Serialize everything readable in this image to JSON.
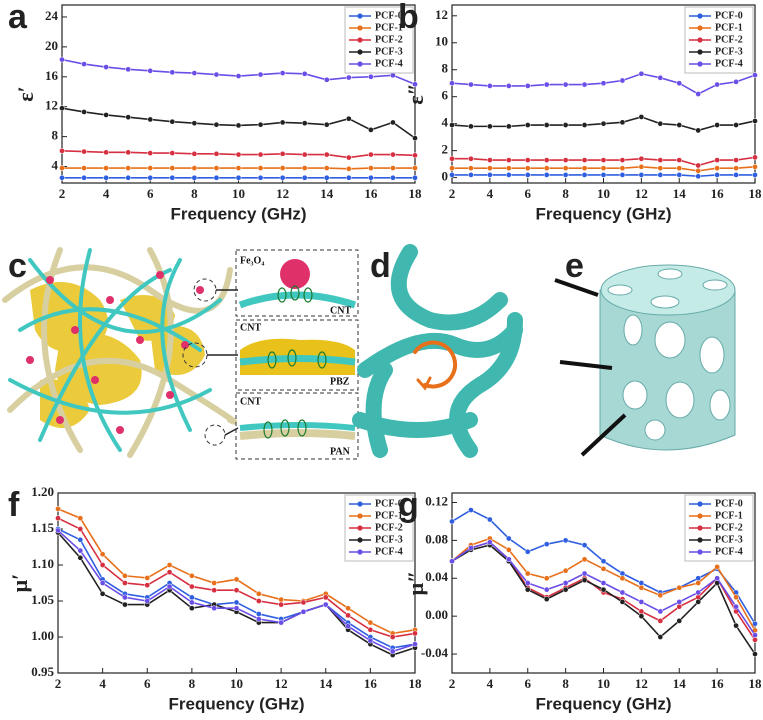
{
  "chart_data": [
    {
      "type": "line",
      "panel_label": "a",
      "ylabel": "ε′",
      "xlabel": "Frequency (GHz)",
      "x": [
        2,
        3,
        4,
        5,
        6,
        7,
        8,
        9,
        10,
        11,
        12,
        13,
        14,
        15,
        16,
        17,
        18
      ],
      "xlim": [
        2,
        18
      ],
      "xticks": [
        2,
        4,
        6,
        8,
        10,
        12,
        14,
        16,
        18
      ],
      "ylim": [
        1.8,
        25.6
      ],
      "yticks": [
        4,
        8,
        12,
        16,
        20,
        24
      ],
      "legend": "upper right",
      "series": [
        {
          "name": "PCF-0",
          "color": "#2f5fe0",
          "values": [
            2.5,
            2.5,
            2.5,
            2.5,
            2.5,
            2.5,
            2.5,
            2.5,
            2.5,
            2.5,
            2.5,
            2.5,
            2.5,
            2.5,
            2.5,
            2.5,
            2.5
          ]
        },
        {
          "name": "PCF-1",
          "color": "#e8701a",
          "values": [
            3.8,
            3.8,
            3.8,
            3.8,
            3.8,
            3.8,
            3.8,
            3.8,
            3.8,
            3.8,
            3.8,
            3.8,
            3.8,
            3.7,
            3.8,
            3.8,
            3.8
          ]
        },
        {
          "name": "PCF-2",
          "color": "#d62f40",
          "values": [
            6.1,
            6.0,
            5.9,
            5.9,
            5.8,
            5.8,
            5.7,
            5.7,
            5.6,
            5.6,
            5.7,
            5.6,
            5.6,
            5.2,
            5.6,
            5.6,
            5.5
          ]
        },
        {
          "name": "PCF-3",
          "color": "#222222",
          "values": [
            11.8,
            11.3,
            10.9,
            10.6,
            10.3,
            10.0,
            9.8,
            9.6,
            9.5,
            9.6,
            9.9,
            9.8,
            9.6,
            10.4,
            8.9,
            9.9,
            7.8
          ]
        },
        {
          "name": "PCF-4",
          "color": "#6b4de8",
          "values": [
            18.3,
            17.7,
            17.3,
            17.0,
            16.8,
            16.6,
            16.5,
            16.3,
            16.1,
            16.3,
            16.5,
            16.4,
            15.6,
            15.9,
            16.0,
            16.2,
            15.0
          ]
        }
      ]
    },
    {
      "type": "line",
      "panel_label": "b",
      "ylabel": "ε″",
      "xlabel": "Frequency (GHz)",
      "x": [
        2,
        3,
        4,
        5,
        6,
        7,
        8,
        9,
        10,
        11,
        12,
        13,
        14,
        15,
        16,
        17,
        18
      ],
      "xlim": [
        2,
        18
      ],
      "xticks": [
        2,
        4,
        6,
        8,
        10,
        12,
        14,
        16,
        18
      ],
      "ylim": [
        -0.4,
        12.8
      ],
      "yticks": [
        0,
        2,
        4,
        6,
        8,
        10,
        12
      ],
      "legend": "upper right",
      "series": [
        {
          "name": "PCF-0",
          "color": "#2f5fe0",
          "values": [
            0.2,
            0.2,
            0.2,
            0.2,
            0.2,
            0.2,
            0.2,
            0.2,
            0.2,
            0.2,
            0.2,
            0.2,
            0.2,
            0.1,
            0.2,
            0.2,
            0.2
          ]
        },
        {
          "name": "PCF-1",
          "color": "#e8701a",
          "values": [
            0.7,
            0.7,
            0.7,
            0.7,
            0.7,
            0.7,
            0.7,
            0.7,
            0.7,
            0.7,
            0.8,
            0.7,
            0.7,
            0.5,
            0.7,
            0.7,
            0.8
          ]
        },
        {
          "name": "PCF-2",
          "color": "#d62f40",
          "values": [
            1.4,
            1.4,
            1.3,
            1.3,
            1.3,
            1.3,
            1.3,
            1.3,
            1.3,
            1.3,
            1.4,
            1.3,
            1.3,
            0.9,
            1.3,
            1.3,
            1.5
          ]
        },
        {
          "name": "PCF-3",
          "color": "#222222",
          "values": [
            3.9,
            3.8,
            3.8,
            3.8,
            3.9,
            3.9,
            3.9,
            3.9,
            4.0,
            4.1,
            4.5,
            4.0,
            3.9,
            3.5,
            3.9,
            3.9,
            4.2
          ]
        },
        {
          "name": "PCF-4",
          "color": "#6b4de8",
          "values": [
            7.0,
            6.9,
            6.8,
            6.8,
            6.8,
            6.9,
            6.9,
            6.9,
            7.0,
            7.2,
            7.7,
            7.4,
            7.0,
            6.2,
            6.9,
            7.1,
            7.6
          ]
        }
      ]
    },
    {
      "type": "line",
      "panel_label": "f",
      "ylabel": "μ′",
      "xlabel": "Frequency (GHz)",
      "x": [
        2,
        3,
        4,
        5,
        6,
        7,
        8,
        9,
        10,
        11,
        12,
        13,
        14,
        15,
        16,
        17,
        18
      ],
      "xlim": [
        2,
        18
      ],
      "xticks": [
        2,
        4,
        6,
        8,
        10,
        12,
        14,
        16,
        18
      ],
      "ylim": [
        0.95,
        1.2
      ],
      "yticks": [
        0.95,
        {
          "value": 1,
          "label": "1.00"
        },
        1.05,
        {
          "value": 1.1,
          "label": "1.10"
        },
        1.15,
        {
          "value": 1.2,
          "label": "1.20"
        }
      ],
      "legend": "upper right",
      "series": [
        {
          "name": "PCF-0",
          "color": "#2f5fe0",
          "values": [
            1.15,
            1.135,
            1.08,
            1.06,
            1.055,
            1.075,
            1.055,
            1.045,
            1.048,
            1.032,
            1.025,
            1.035,
            1.045,
            1.02,
            1.0,
            0.985,
            0.99
          ]
        },
        {
          "name": "PCF-1",
          "color": "#e8701a",
          "values": [
            1.178,
            1.165,
            1.115,
            1.085,
            1.082,
            1.1,
            1.085,
            1.075,
            1.08,
            1.06,
            1.052,
            1.05,
            1.06,
            1.04,
            1.02,
            1.005,
            1.01
          ]
        },
        {
          "name": "PCF-2",
          "color": "#d62f40",
          "values": [
            1.165,
            1.15,
            1.1,
            1.075,
            1.072,
            1.09,
            1.07,
            1.065,
            1.065,
            1.05,
            1.045,
            1.048,
            1.055,
            1.03,
            1.01,
            1.0,
            1.005
          ]
        },
        {
          "name": "PCF-3",
          "color": "#222222",
          "values": [
            1.145,
            1.11,
            1.06,
            1.045,
            1.045,
            1.065,
            1.04,
            1.045,
            1.035,
            1.02,
            1.02,
            1.035,
            1.045,
            1.01,
            0.99,
            0.975,
            0.985
          ]
        },
        {
          "name": "PCF-4",
          "color": "#6b4de8",
          "values": [
            1.148,
            1.12,
            1.075,
            1.055,
            1.05,
            1.07,
            1.048,
            1.04,
            1.04,
            1.025,
            1.02,
            1.035,
            1.045,
            1.015,
            0.995,
            0.98,
            0.99
          ]
        }
      ]
    },
    {
      "type": "line",
      "panel_label": "g",
      "ylabel": "μ″",
      "xlabel": "Frequency (GHz)",
      "x": [
        2,
        3,
        4,
        5,
        6,
        7,
        8,
        9,
        10,
        11,
        12,
        13,
        14,
        15,
        16,
        17,
        18
      ],
      "xlim": [
        2,
        18
      ],
      "xticks": [
        2,
        4,
        6,
        8,
        10,
        12,
        14,
        16,
        18
      ],
      "ylim": [
        -0.06,
        0.13
      ],
      "yticks": [
        -0.04,
        {
          "value": 0,
          "label": "0.00"
        },
        0.04,
        0.08,
        0.12
      ],
      "legend": "upper right",
      "series": [
        {
          "name": "PCF-0",
          "color": "#2f5fe0",
          "values": [
            0.1,
            0.112,
            0.102,
            0.082,
            0.068,
            0.076,
            0.08,
            0.075,
            0.058,
            0.045,
            0.035,
            0.025,
            0.03,
            0.04,
            0.05,
            0.025,
            -0.008
          ]
        },
        {
          "name": "PCF-1",
          "color": "#e8701a",
          "values": [
            0.058,
            0.075,
            0.082,
            0.07,
            0.045,
            0.04,
            0.048,
            0.06,
            0.05,
            0.04,
            0.03,
            0.022,
            0.03,
            0.035,
            0.052,
            0.02,
            -0.015
          ]
        },
        {
          "name": "PCF-2",
          "color": "#d62f40",
          "values": [
            0.058,
            0.072,
            0.078,
            0.06,
            0.03,
            0.02,
            0.03,
            0.04,
            0.025,
            0.018,
            0.005,
            -0.005,
            0.01,
            0.02,
            0.04,
            0.005,
            -0.025
          ]
        },
        {
          "name": "PCF-3",
          "color": "#222222",
          "values": [
            0.058,
            0.07,
            0.075,
            0.058,
            0.028,
            0.018,
            0.028,
            0.038,
            0.028,
            0.015,
            0.0,
            -0.022,
            -0.005,
            0.015,
            0.035,
            -0.01,
            -0.04
          ]
        },
        {
          "name": "PCF-4",
          "color": "#6b4de8",
          "values": [
            0.058,
            0.072,
            0.078,
            0.06,
            0.035,
            0.028,
            0.035,
            0.045,
            0.035,
            0.025,
            0.015,
            0.005,
            0.015,
            0.025,
            0.04,
            0.01,
            -0.02
          ]
        }
      ]
    }
  ],
  "illustrations": [
    {
      "label": "c",
      "annotations": [
        "Fe₃O₄",
        "CNT",
        "CNT",
        "PBZ",
        "CNT",
        "PAN"
      ]
    },
    {
      "label": "d"
    },
    {
      "label": "e"
    }
  ]
}
